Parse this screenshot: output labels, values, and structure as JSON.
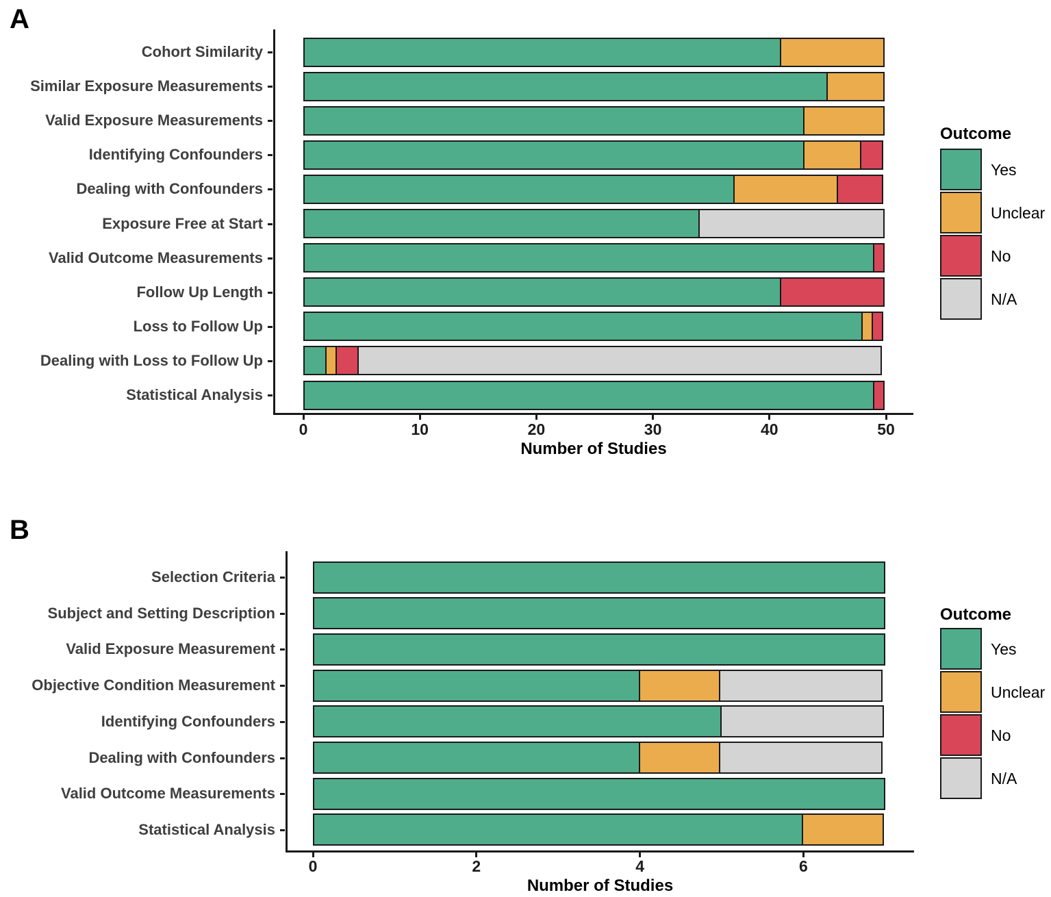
{
  "chart_data": [
    {
      "type": "bar",
      "orientation": "horizontal",
      "stacked": true,
      "panel_label": "A",
      "xlabel": "Number of Studies",
      "xticks": [
        0,
        10,
        20,
        30,
        40,
        50
      ],
      "xlim": [
        0,
        52.5
      ],
      "grid": false,
      "legend": {
        "title": "Outcome",
        "position": "right",
        "entries": [
          {
            "label": "Yes",
            "color": "#4FAD8B"
          },
          {
            "label": "Unclear",
            "color": "#EBAC4D"
          },
          {
            "label": "No",
            "color": "#D84658"
          },
          {
            "label": "N/A",
            "color": "#D4D4D4"
          }
        ]
      },
      "categories": [
        "Cohort Similarity",
        "Similar Exposure Measurements",
        "Valid Exposure Measurements",
        "Identifying Confounders",
        "Dealing with Confounders",
        "Exposure Free at Start",
        "Valid Outcome Measurements",
        "Follow Up Length",
        "Loss to Follow Up",
        "Dealing with Loss to Follow Up",
        "Statistical Analysis"
      ],
      "series": [
        {
          "name": "Yes",
          "values": [
            41,
            45,
            43,
            43,
            37,
            34,
            49,
            41,
            48,
            2,
            49
          ]
        },
        {
          "name": "Unclear",
          "values": [
            9,
            5,
            7,
            5,
            9,
            0,
            0,
            0,
            1,
            1,
            0
          ]
        },
        {
          "name": "No",
          "values": [
            0,
            0,
            0,
            2,
            4,
            0,
            1,
            9,
            1,
            2,
            1
          ]
        },
        {
          "name": "N/A",
          "values": [
            0,
            0,
            0,
            0,
            0,
            16,
            0,
            0,
            0,
            45,
            0
          ]
        }
      ]
    },
    {
      "type": "bar",
      "orientation": "horizontal",
      "stacked": true,
      "panel_label": "B",
      "xlabel": "Number of Studies",
      "xticks": [
        0,
        2,
        4,
        6
      ],
      "xlim": [
        0,
        7.35
      ],
      "grid": false,
      "legend": {
        "title": "Outcome",
        "position": "right",
        "entries": [
          {
            "label": "Yes",
            "color": "#4FAD8B"
          },
          {
            "label": "Unclear",
            "color": "#EBAC4D"
          },
          {
            "label": "No",
            "color": "#D84658"
          },
          {
            "label": "N/A",
            "color": "#D4D4D4"
          }
        ]
      },
      "categories": [
        "Selection Criteria",
        "Subject and Setting Description",
        "Valid Exposure Measurement",
        "Objective Condition Measurement",
        "Identifying Confounders",
        "Dealing with Confounders",
        "Valid Outcome Measurements",
        "Statistical Analysis"
      ],
      "series": [
        {
          "name": "Yes",
          "values": [
            7,
            7,
            7,
            4,
            5,
            4,
            7,
            6
          ]
        },
        {
          "name": "Unclear",
          "values": [
            0,
            0,
            0,
            1,
            0,
            1,
            0,
            1
          ]
        },
        {
          "name": "No",
          "values": [
            0,
            0,
            0,
            0,
            0,
            0,
            0,
            0
          ]
        },
        {
          "name": "N/A",
          "values": [
            0,
            0,
            0,
            2,
            2,
            2,
            0,
            0
          ]
        }
      ]
    }
  ]
}
